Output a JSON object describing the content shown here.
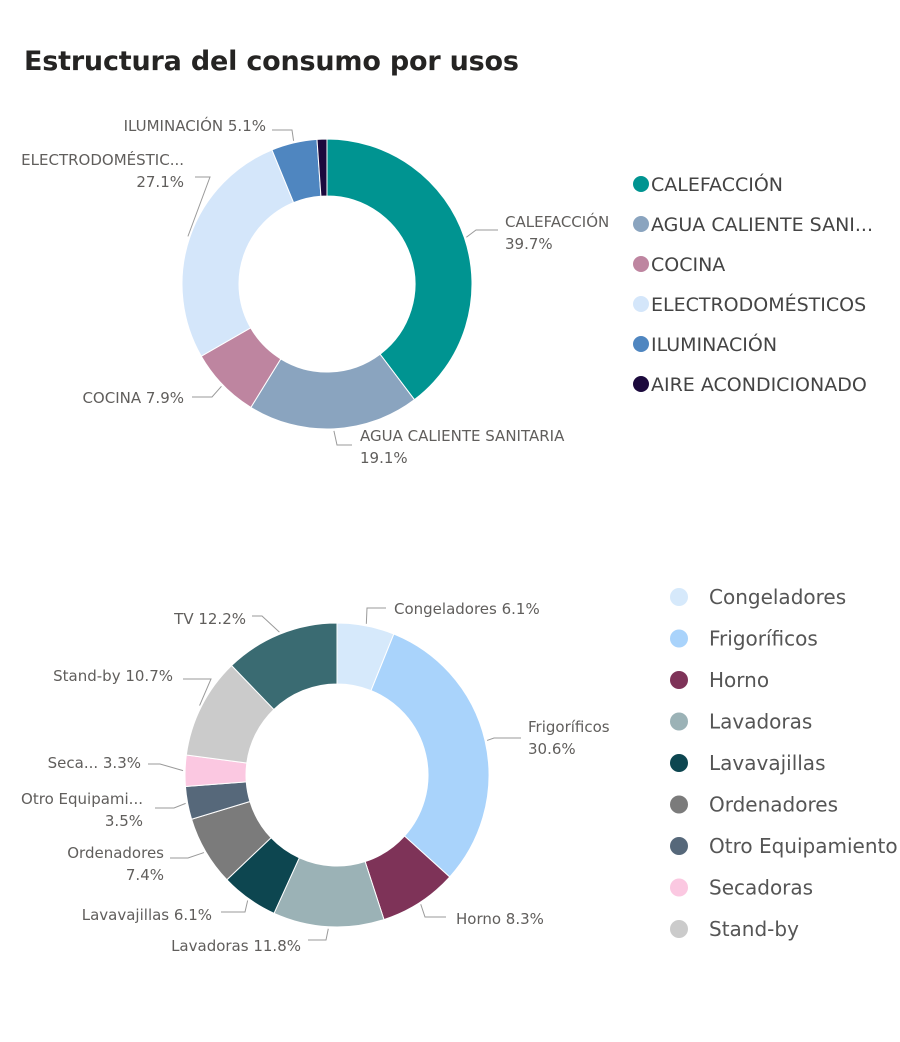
{
  "title": "Estructura del consumo por usos",
  "chart_data": [
    {
      "type": "pie",
      "donut": true,
      "legend_position": "right",
      "categories": [
        "CALEFACCIÓN",
        "AGUA CALIENTE SANITARIA",
        "COCINA",
        "ELECTRODOMÉSTICOS",
        "ILUMINACIÓN",
        "AIRE ACONDICIONADO"
      ],
      "legend_labels": [
        "CALEFACCIÓN",
        "AGUA CALIENTE SANI...",
        "COCINA",
        "ELECTRODOMÉSTICOS",
        "ILUMINACIÓN",
        "AIRE ACONDICIONADO"
      ],
      "values": [
        39.7,
        19.1,
        7.9,
        27.1,
        5.1,
        1.1
      ],
      "colors": [
        "#009491",
        "#8aa4bf",
        "#be85a0",
        "#d4e6fa",
        "#4f86c0",
        "#1c0a3d"
      ],
      "data_labels": [
        [
          "CALEFACCIÓN",
          "39.7%"
        ],
        [
          "AGUA CALIENTE SANITARIA",
          "19.1%"
        ],
        [
          "COCINA 7.9%"
        ],
        [
          "ELECTRODOMÉSTIC...",
          "27.1%"
        ],
        [
          "ILUMINACIÓN 5.1%"
        ],
        null
      ]
    },
    {
      "type": "pie",
      "donut": true,
      "legend_position": "right",
      "categories": [
        "Congeladores",
        "Frigoríficos",
        "Horno",
        "Lavadoras",
        "Lavavajillas",
        "Ordenadores",
        "Otro Equipamiento",
        "Secadoras",
        "Stand-by",
        "TV"
      ],
      "legend_labels": [
        "Congeladores",
        "Frigoríficos",
        "Horno",
        "Lavadoras",
        "Lavavajillas",
        "Ordenadores",
        "Otro Equipamiento",
        "Secadoras",
        "Stand-by"
      ],
      "values": [
        6.1,
        30.6,
        8.3,
        11.8,
        6.1,
        7.4,
        3.5,
        3.3,
        10.7,
        12.2
      ],
      "colors": [
        "#d6e9fb",
        "#a9d3fb",
        "#7e3358",
        "#9bb2b6",
        "#0d4650",
        "#7b7b7b",
        "#56687a",
        "#fbc8e1",
        "#cbcbcb",
        "#3a6b72"
      ],
      "data_labels": [
        [
          "Congeladores 6.1%"
        ],
        [
          "Frigoríficos",
          "30.6%"
        ],
        [
          "Horno 8.3%"
        ],
        [
          "Lavadoras 11.8%"
        ],
        [
          "Lavavajillas 6.1%"
        ],
        [
          "Ordenadores",
          "7.4%"
        ],
        [
          "Otro Equipami...",
          "3.5%"
        ],
        [
          "Seca... 3.3%"
        ],
        [
          "Stand-by 10.7%"
        ],
        [
          "TV 12.2%"
        ]
      ]
    }
  ]
}
